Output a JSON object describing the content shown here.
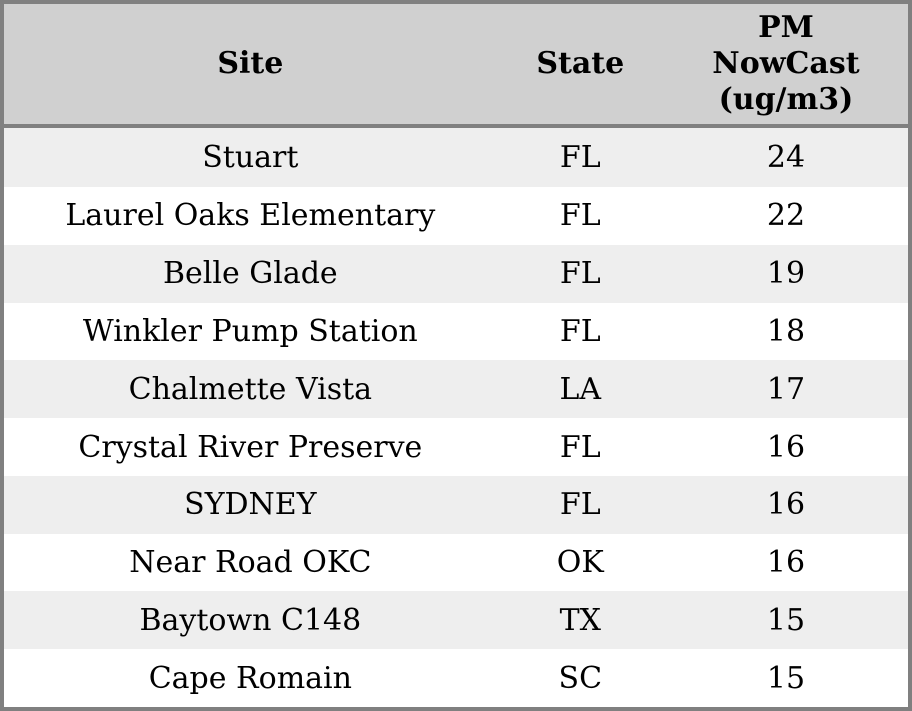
{
  "chart_data": {
    "type": "table",
    "title": "",
    "columns": [
      "Site",
      "State",
      "PM\nNowCast\n(ug/m3)"
    ],
    "rows": [
      {
        "site": "Stuart",
        "state": "FL",
        "pm_nowcast": 24
      },
      {
        "site": "Laurel Oaks Elementary",
        "state": "FL",
        "pm_nowcast": 22
      },
      {
        "site": "Belle Glade",
        "state": "FL",
        "pm_nowcast": 19
      },
      {
        "site": "Winkler Pump Station",
        "state": "FL",
        "pm_nowcast": 18
      },
      {
        "site": "Chalmette Vista",
        "state": "LA",
        "pm_nowcast": 17
      },
      {
        "site": "Crystal River Preserve",
        "state": "FL",
        "pm_nowcast": 16
      },
      {
        "site": "SYDNEY",
        "state": "FL",
        "pm_nowcast": 16
      },
      {
        "site": "Near Road OKC",
        "state": "OK",
        "pm_nowcast": 16
      },
      {
        "site": "Baytown C148",
        "state": "TX",
        "pm_nowcast": 15
      },
      {
        "site": "Cape Romain",
        "state": "SC",
        "pm_nowcast": 15
      }
    ],
    "colors": {
      "header_bg": "#d0d0d0",
      "row_alt_bg": "#eeeeee",
      "row_bg": "#ffffff",
      "border": "#808080",
      "text": "#000000"
    },
    "layout": {
      "striped": true,
      "text_align": "center",
      "header_divider": true
    }
  }
}
